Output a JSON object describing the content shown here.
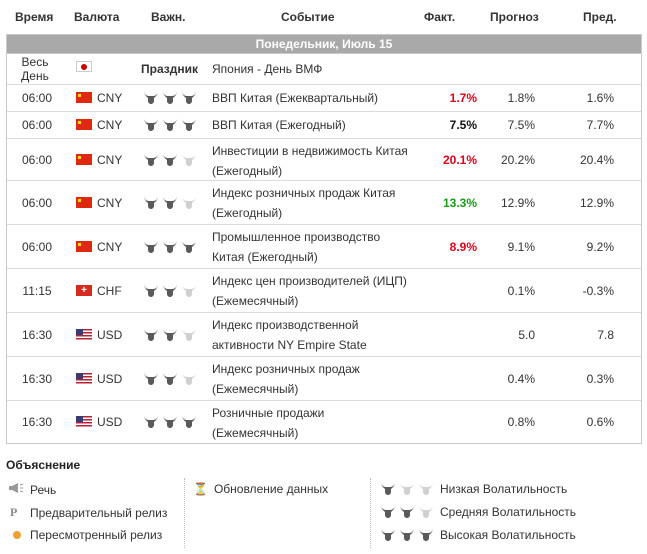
{
  "headers": {
    "time": "Время",
    "currency": "Валюта",
    "importance": "Важн.",
    "event": "Событие",
    "actual": "Факт.",
    "forecast": "Прогноз",
    "previous": "Пред."
  },
  "day_label": "Понедельник, Июль 15",
  "holiday_row": {
    "time": "Весь День",
    "importance": "Праздник",
    "event": "Япония - День ВМФ"
  },
  "rows": [
    {
      "time": "06:00",
      "flag": "cn",
      "currency": "CNY",
      "bulls": 3,
      "event": "ВВП Китая (Ежеквартальный)",
      "actual": "1.7%",
      "actual_color": "red",
      "forecast": "1.8%",
      "previous": "1.6%"
    },
    {
      "time": "06:00",
      "flag": "cn",
      "currency": "CNY",
      "bulls": 3,
      "event": "ВВП Китая (Ежегодный)",
      "actual": "7.5%",
      "actual_color": "black",
      "forecast": "7.5%",
      "previous": "7.7%"
    },
    {
      "time": "06:00",
      "flag": "cn",
      "currency": "CNY",
      "bulls": 2,
      "event": "Инвестиции в недвижимость Китая (Ежегодный)",
      "actual": "20.1%",
      "actual_color": "red",
      "forecast": "20.2%",
      "previous": "20.4%"
    },
    {
      "time": "06:00",
      "flag": "cn",
      "currency": "CNY",
      "bulls": 2,
      "event": "Индекс розничных продаж Китая (Ежегодный)",
      "actual": "13.3%",
      "actual_color": "green",
      "forecast": "12.9%",
      "previous": "12.9%"
    },
    {
      "time": "06:00",
      "flag": "cn",
      "currency": "CNY",
      "bulls": 3,
      "event": "Промышленное производство Китая (Ежегодный)",
      "actual": "8.9%",
      "actual_color": "red",
      "forecast": "9.1%",
      "previous": "9.2%"
    },
    {
      "time": "11:15",
      "flag": "ch",
      "currency": "CHF",
      "bulls": 2,
      "event": "Индекс цен производителей (ИЦП) (Ежемесячный)",
      "actual": "",
      "actual_color": "black",
      "forecast": "0.1%",
      "previous": "-0.3%"
    },
    {
      "time": "16:30",
      "flag": "us",
      "currency": "USD",
      "bulls": 2,
      "event": "Индекс производственной активности NY Empire State",
      "actual": "",
      "actual_color": "black",
      "forecast": "5.0",
      "previous": "7.8"
    },
    {
      "time": "16:30",
      "flag": "us",
      "currency": "USD",
      "bulls": 2,
      "event": "Индекс розничных продаж (Ежемесячный)",
      "actual": "",
      "actual_color": "black",
      "forecast": "0.4%",
      "previous": "0.3%"
    },
    {
      "time": "16:30",
      "flag": "us",
      "currency": "USD",
      "bulls": 3,
      "event": "Розничные продажи (Ежемесячный)",
      "actual": "",
      "actual_color": "black",
      "forecast": "0.8%",
      "previous": "0.6%"
    }
  ],
  "legend": {
    "title": "Объяснение",
    "speech": "Речь",
    "prelim": "Предварительный релиз",
    "revised": "Пересмотренный релиз",
    "update": "Обновление данных",
    "low": "Низкая Волатильность",
    "mid": "Средняя Волатильность",
    "high": "Высокая Волатильность",
    "prelim_glyph": "P",
    "update_glyph": "⏳"
  },
  "colors": {
    "day_bar": "#a9a9a9",
    "red": "#e0001a",
    "green": "#1a9b1a",
    "bull_on": "#5a5a5a",
    "bull_off": "#d0d0d0",
    "revised_dot": "#f0a030"
  }
}
